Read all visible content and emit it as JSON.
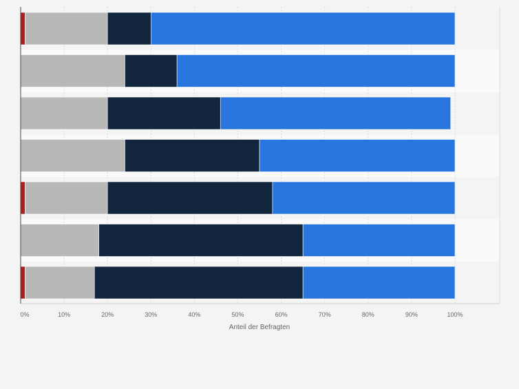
{
  "chart_data": {
    "type": "bar",
    "orientation": "horizontal",
    "stacked": true,
    "xlabel": "Anteil der Befragten",
    "xlim": [
      0,
      100
    ],
    "x_ticks": [
      "0%",
      "10%",
      "20%",
      "30%",
      "40%",
      "50%",
      "60%",
      "70%",
      "80%",
      "90%",
      "100%"
    ],
    "grid": true,
    "categories": [
      "",
      "",
      "",
      "",
      "",
      "",
      ""
    ],
    "series": [
      {
        "color": "#b11d1d",
        "values": [
          1,
          0,
          0,
          0,
          1,
          0,
          1
        ]
      },
      {
        "color": "#b8b8b8",
        "values": [
          19,
          24,
          20,
          24,
          19,
          18,
          16
        ]
      },
      {
        "color": "#11263d",
        "values": [
          10,
          12,
          26,
          31,
          38,
          47,
          48
        ]
      },
      {
        "color": "#2876dd",
        "values": [
          70,
          64,
          53,
          45,
          42,
          35,
          35
        ]
      }
    ],
    "band_colors": [
      "#f4f4f4",
      "#fafafa"
    ]
  }
}
